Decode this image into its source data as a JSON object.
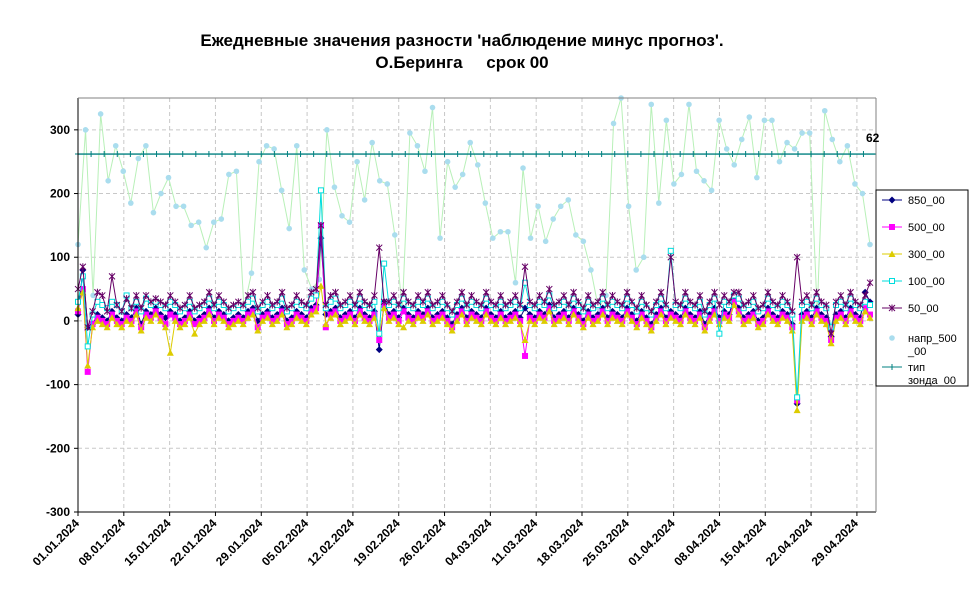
{
  "chart_data": {
    "type": "line",
    "title_line1": "Ежедневные значения разности 'наблюдение минус прогноз'.",
    "title_line2": "О.Беринга     срок 00",
    "ylim": [
      -300,
      350
    ],
    "y_ticks": [
      -300,
      -200,
      -100,
      0,
      100,
      200,
      300
    ],
    "grid": true,
    "legend_position": "right",
    "x_tick_labels": [
      "01.01.2024",
      "08.01.2024",
      "15.01.2024",
      "22.01.2024",
      "29.01.2024",
      "05.02.2024",
      "12.02.2024",
      "19.02.2024",
      "26.02.2024",
      "04.03.2024",
      "11.03.2024",
      "18.03.2024",
      "25.03.2024",
      "01.04.2024",
      "08.04.2024",
      "15.04.2024",
      "22.04.2024",
      "29.04.2024"
    ],
    "annotation": {
      "text": "62",
      "x": 120,
      "y": 262
    },
    "series": [
      {
        "name": "850_00",
        "color": "#000080",
        "marker": "diamond",
        "values": [
          10,
          80,
          -10,
          -5,
          10,
          5,
          0,
          15,
          5,
          0,
          10,
          5,
          20,
          -5,
          15,
          10,
          20,
          10,
          5,
          15,
          10,
          0,
          5,
          15,
          0,
          5,
          10,
          20,
          5,
          15,
          10,
          0,
          5,
          10,
          5,
          15,
          20,
          0,
          10,
          15,
          5,
          10,
          20,
          0,
          5,
          15,
          10,
          5,
          20,
          25,
          130,
          10,
          15,
          20,
          5,
          10,
          15,
          5,
          20,
          10,
          5,
          15,
          -45,
          30,
          10,
          15,
          5,
          20,
          10,
          5,
          15,
          10,
          20,
          5,
          10,
          15,
          5,
          -5,
          10,
          20,
          5,
          15,
          10,
          5,
          20,
          10,
          5,
          15,
          5,
          10,
          15,
          5,
          20,
          10,
          5,
          15,
          10,
          25,
          5,
          10,
          15,
          5,
          20,
          10,
          0,
          15,
          5,
          10,
          20,
          5,
          15,
          10,
          5,
          20,
          10,
          0,
          15,
          5,
          -5,
          10,
          20,
          5,
          15,
          10,
          5,
          20,
          10,
          5,
          15,
          -5,
          10,
          20,
          5,
          15,
          10,
          35,
          20,
          5,
          10,
          15,
          0,
          5,
          20,
          10,
          5,
          15,
          10,
          -5,
          -130,
          10,
          15,
          5,
          20,
          10,
          5,
          -25,
          10,
          15,
          5,
          20,
          10,
          5,
          45,
          30
        ]
      },
      {
        "name": "500_00",
        "color": "#FF00FF",
        "marker": "square",
        "values": [
          15,
          50,
          -80,
          -5,
          5,
          0,
          -5,
          10,
          0,
          -5,
          5,
          0,
          15,
          -10,
          10,
          5,
          15,
          5,
          -5,
          10,
          5,
          -5,
          0,
          10,
          -5,
          0,
          5,
          15,
          0,
          10,
          5,
          -5,
          0,
          5,
          0,
          10,
          15,
          -10,
          5,
          10,
          0,
          5,
          15,
          -5,
          0,
          10,
          5,
          0,
          15,
          20,
          150,
          -10,
          10,
          15,
          0,
          5,
          10,
          0,
          15,
          5,
          0,
          10,
          -30,
          25,
          5,
          10,
          0,
          15,
          5,
          0,
          10,
          5,
          15,
          0,
          5,
          10,
          0,
          -10,
          5,
          15,
          0,
          10,
          5,
          0,
          15,
          5,
          0,
          10,
          0,
          5,
          10,
          0,
          -55,
          5,
          0,
          10,
          5,
          20,
          0,
          5,
          10,
          0,
          15,
          5,
          -5,
          10,
          0,
          5,
          15,
          0,
          10,
          5,
          0,
          15,
          5,
          -5,
          10,
          0,
          -10,
          5,
          15,
          0,
          10,
          5,
          0,
          15,
          5,
          0,
          10,
          -10,
          5,
          15,
          0,
          10,
          5,
          30,
          15,
          0,
          5,
          10,
          -5,
          0,
          15,
          5,
          0,
          10,
          5,
          -10,
          -125,
          5,
          10,
          0,
          15,
          5,
          0,
          -30,
          5,
          10,
          0,
          15,
          5,
          0,
          20,
          10
        ]
      },
      {
        "name": "300_00",
        "color": "#DDCC00",
        "marker": "triangle",
        "values": [
          20,
          45,
          -70,
          -10,
          0,
          -5,
          -10,
          5,
          -5,
          -10,
          0,
          -5,
          10,
          -15,
          5,
          0,
          10,
          0,
          -10,
          -50,
          0,
          -10,
          -5,
          5,
          -20,
          -5,
          0,
          10,
          -5,
          5,
          0,
          -10,
          -5,
          0,
          -5,
          5,
          10,
          -15,
          0,
          5,
          -5,
          0,
          10,
          -10,
          -5,
          5,
          0,
          -5,
          10,
          15,
          55,
          -5,
          5,
          10,
          -5,
          0,
          5,
          -5,
          10,
          0,
          -5,
          5,
          -20,
          20,
          0,
          5,
          -5,
          -10,
          0,
          -5,
          5,
          0,
          10,
          -5,
          0,
          5,
          -5,
          -15,
          0,
          10,
          -5,
          5,
          0,
          -5,
          10,
          0,
          -5,
          5,
          -5,
          0,
          5,
          -5,
          -30,
          0,
          -5,
          5,
          0,
          15,
          -5,
          0,
          5,
          -5,
          10,
          0,
          -10,
          5,
          -5,
          0,
          10,
          -5,
          5,
          0,
          -5,
          10,
          0,
          -10,
          5,
          -5,
          -15,
          0,
          10,
          -5,
          5,
          0,
          -5,
          10,
          0,
          -5,
          5,
          -15,
          0,
          10,
          -5,
          5,
          0,
          25,
          10,
          -5,
          0,
          5,
          -10,
          -5,
          10,
          0,
          -5,
          5,
          0,
          -15,
          -140,
          0,
          5,
          -5,
          10,
          0,
          -5,
          -35,
          0,
          5,
          -5,
          10,
          0,
          -5,
          15,
          5
        ]
      },
      {
        "name": "100_00",
        "color": "#00DDDD",
        "marker": "circle",
        "values": [
          30,
          70,
          -40,
          10,
          30,
          25,
          20,
          30,
          25,
          15,
          40,
          20,
          30,
          15,
          35,
          25,
          30,
          25,
          20,
          30,
          25,
          15,
          20,
          30,
          15,
          20,
          25,
          35,
          20,
          30,
          25,
          15,
          20,
          25,
          20,
          30,
          35,
          15,
          25,
          30,
          20,
          25,
          35,
          15,
          20,
          30,
          25,
          20,
          35,
          40,
          205,
          20,
          30,
          35,
          20,
          25,
          30,
          20,
          35,
          25,
          20,
          30,
          -20,
          90,
          25,
          30,
          20,
          35,
          25,
          20,
          30,
          25,
          35,
          20,
          25,
          30,
          20,
          10,
          25,
          35,
          20,
          30,
          25,
          20,
          35,
          25,
          20,
          30,
          20,
          25,
          30,
          20,
          60,
          25,
          20,
          30,
          25,
          40,
          20,
          25,
          30,
          20,
          35,
          25,
          15,
          30,
          20,
          25,
          35,
          20,
          30,
          25,
          20,
          35,
          25,
          15,
          30,
          20,
          10,
          25,
          35,
          20,
          110,
          25,
          20,
          35,
          25,
          20,
          30,
          10,
          25,
          35,
          -20,
          30,
          25,
          40,
          35,
          20,
          25,
          30,
          15,
          20,
          35,
          25,
          20,
          30,
          25,
          10,
          -120,
          25,
          30,
          20,
          35,
          25,
          20,
          -10,
          25,
          30,
          20,
          35,
          25,
          20,
          30,
          25
        ]
      },
      {
        "name": "50_00",
        "color": "#660066",
        "marker": "star",
        "values": [
          50,
          85,
          -10,
          15,
          45,
          40,
          15,
          70,
          25,
          15,
          35,
          20,
          40,
          20,
          40,
          30,
          35,
          30,
          25,
          40,
          30,
          20,
          25,
          40,
          20,
          25,
          30,
          45,
          25,
          40,
          30,
          20,
          25,
          30,
          25,
          40,
          45,
          20,
          30,
          40,
          25,
          30,
          45,
          20,
          25,
          40,
          30,
          25,
          45,
          50,
          150,
          25,
          40,
          45,
          25,
          30,
          40,
          25,
          45,
          30,
          25,
          40,
          115,
          30,
          30,
          40,
          25,
          45,
          30,
          25,
          40,
          30,
          45,
          25,
          30,
          40,
          25,
          15,
          30,
          45,
          25,
          40,
          30,
          25,
          45,
          30,
          25,
          40,
          25,
          30,
          40,
          25,
          85,
          30,
          25,
          40,
          30,
          50,
          25,
          30,
          40,
          25,
          45,
          30,
          20,
          40,
          25,
          30,
          45,
          25,
          40,
          30,
          25,
          45,
          30,
          20,
          40,
          25,
          15,
          30,
          45,
          25,
          100,
          30,
          25,
          45,
          30,
          25,
          40,
          15,
          30,
          45,
          25,
          40,
          30,
          45,
          45,
          25,
          30,
          40,
          20,
          25,
          45,
          30,
          25,
          40,
          30,
          15,
          100,
          30,
          40,
          25,
          45,
          30,
          25,
          -20,
          30,
          40,
          25,
          45,
          30,
          25,
          40,
          60
        ]
      },
      {
        "name": "напр_500_00",
        "color": "#AADDEE",
        "line_color": "#B8F0B8",
        "marker": "dot",
        "values": [
          120,
          300,
          40,
          325,
          220,
          275,
          235,
          185,
          255,
          275,
          170,
          200,
          225,
          180,
          180,
          150,
          155,
          115,
          155,
          160,
          230,
          235,
          20,
          75,
          250,
          275,
          270,
          205,
          145,
          275,
          80,
          50,
          65,
          300,
          210,
          165,
          155,
          250,
          190,
          280,
          220,
          215,
          135,
          20,
          295,
          275,
          235,
          335,
          130,
          250,
          210,
          230,
          280,
          245,
          185,
          130,
          140,
          140,
          60,
          240,
          130,
          180,
          125,
          160,
          180,
          190,
          135,
          125,
          80,
          20,
          40,
          310,
          350,
          180,
          80,
          100,
          340,
          185,
          315,
          215,
          230,
          340,
          235,
          220,
          205,
          315,
          270,
          245,
          285,
          320,
          225,
          315,
          315,
          250,
          280,
          270,
          295,
          295,
          15,
          330,
          285,
          250,
          275,
          215,
          200,
          120
        ]
      },
      {
        "name": "тип зонда_00",
        "color": "#008080",
        "marker": "plus",
        "values": [
          262
        ]
      }
    ]
  }
}
